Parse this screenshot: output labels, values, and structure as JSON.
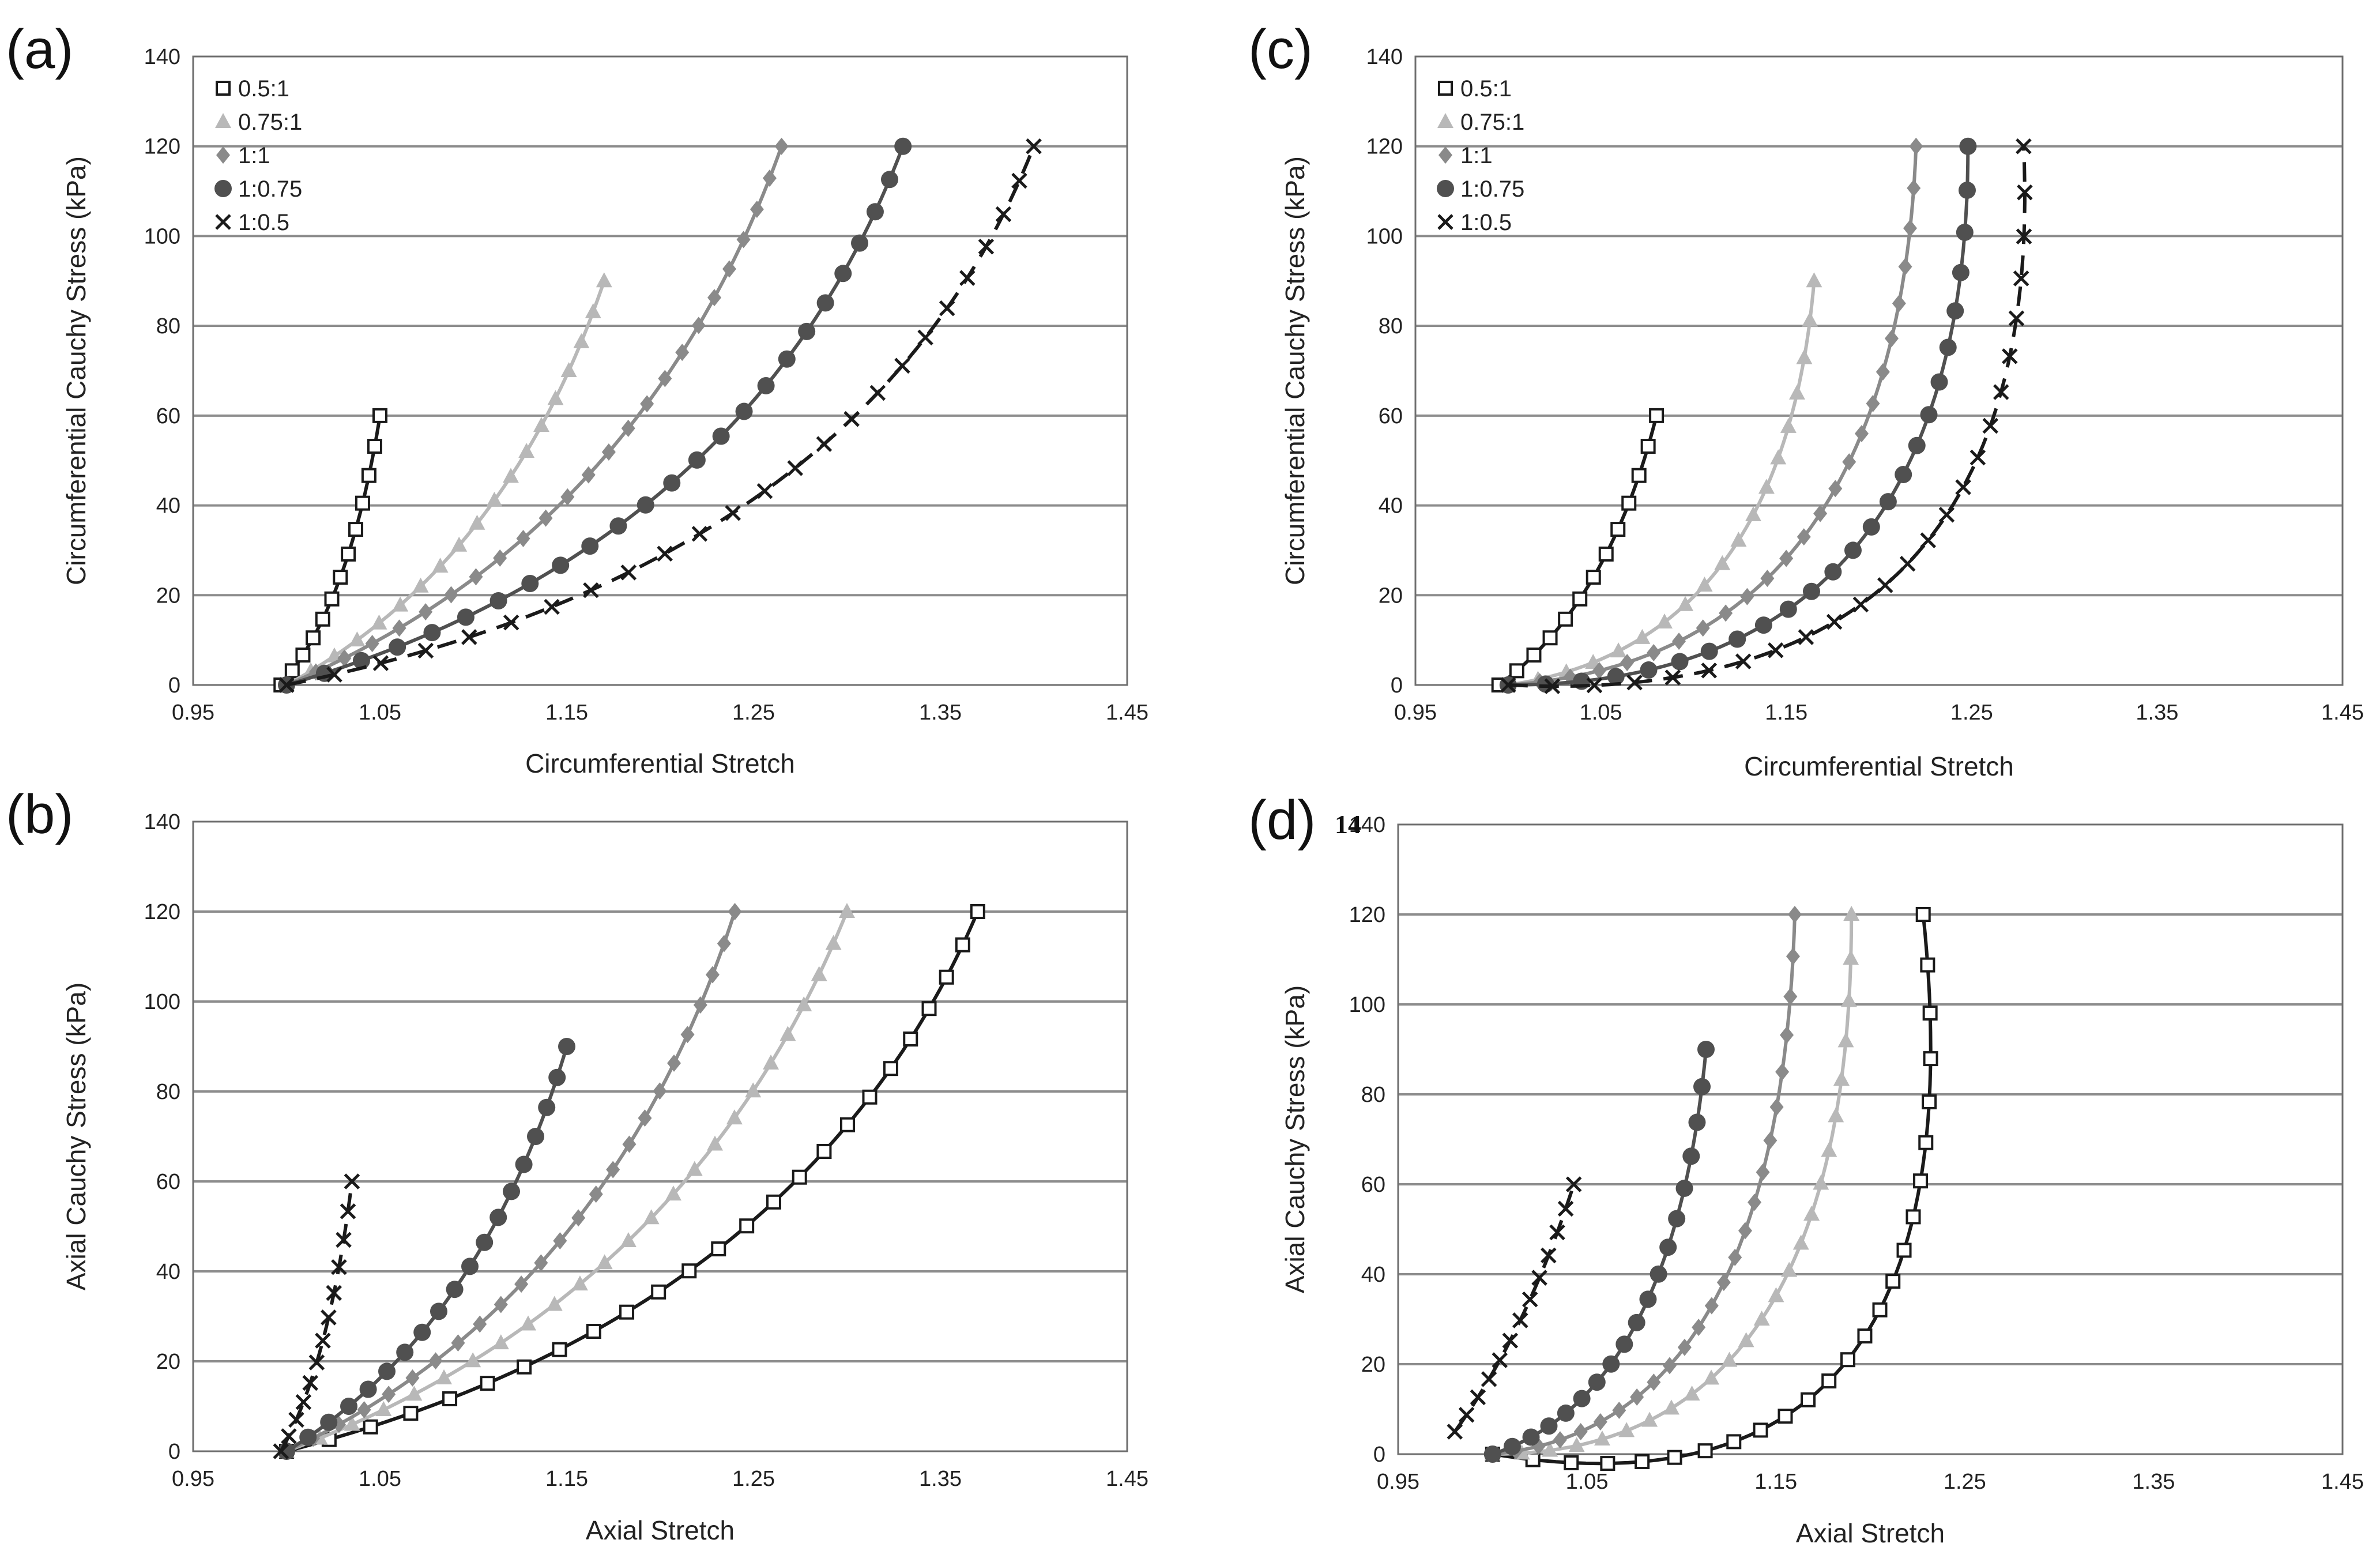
{
  "page_note": "14",
  "chart_data": [
    {
      "panel": "(a)",
      "type": "line",
      "title": "",
      "xlabel": "Circumferential Stretch",
      "ylabel": "Circumferential Cauchy Stress (kPa)",
      "xlim": [
        0.95,
        1.45
      ],
      "ylim": [
        0,
        140
      ],
      "xticks": [
        "0.95",
        "1.05",
        "1.15",
        "1.25",
        "1.35",
        "1.45"
      ],
      "yticks": [
        "0",
        "20",
        "40",
        "60",
        "80",
        "100",
        "120",
        "140"
      ],
      "grid": "horizontal",
      "legend": "top-left",
      "series": [
        {
          "name": "0.5:1",
          "marker": "square",
          "curve": "solid",
          "start": [
            0.997,
            0
          ],
          "end": [
            1.05,
            60
          ],
          "bend": 0.2
        },
        {
          "name": "0.75:1",
          "marker": "triangle",
          "curve": "solid",
          "start": [
            1.0,
            0
          ],
          "end": [
            1.17,
            90
          ],
          "bend": 0.2
        },
        {
          "name": "1:1",
          "marker": "diamond",
          "curve": "solid",
          "start": [
            1.0,
            0
          ],
          "end": [
            1.265,
            120
          ],
          "bend": 0.22
        },
        {
          "name": "1:0.75",
          "marker": "circle",
          "curve": "solid",
          "start": [
            1.0,
            0
          ],
          "end": [
            1.33,
            120
          ],
          "bend": 0.25
        },
        {
          "name": "1:0.5",
          "marker": "x",
          "curve": "dashed",
          "start": [
            1.0,
            0
          ],
          "end": [
            1.4,
            120
          ],
          "bend": 0.28
        }
      ]
    },
    {
      "panel": "(b)",
      "type": "line",
      "title": "",
      "xlabel": "Axial Stretch",
      "ylabel": "Axial Cauchy Stress (kPa)",
      "xlim": [
        0.95,
        1.45
      ],
      "ylim": [
        0,
        140
      ],
      "xticks": [
        "0.95",
        "1.05",
        "1.15",
        "1.25",
        "1.35",
        "1.45"
      ],
      "yticks": [
        "0",
        "20",
        "40",
        "60",
        "80",
        "100",
        "120",
        "140"
      ],
      "grid": "horizontal",
      "legend": "none",
      "series": [
        {
          "name": "0.5:1",
          "marker": "square",
          "curve": "solid",
          "start": [
            1.0,
            0
          ],
          "end": [
            1.37,
            120
          ],
          "bend": 0.25
        },
        {
          "name": "0.75:1",
          "marker": "triangle",
          "curve": "solid",
          "start": [
            1.0,
            0
          ],
          "end": [
            1.3,
            120
          ],
          "bend": 0.22
        },
        {
          "name": "1:1",
          "marker": "diamond",
          "curve": "solid",
          "start": [
            1.0,
            0
          ],
          "end": [
            1.24,
            120
          ],
          "bend": 0.22
        },
        {
          "name": "1:0.75",
          "marker": "circle",
          "curve": "solid",
          "start": [
            1.0,
            0
          ],
          "end": [
            1.15,
            90
          ],
          "bend": 0.2
        },
        {
          "name": "1:0.5",
          "marker": "x",
          "curve": "dashed",
          "start": [
            0.997,
            0
          ],
          "end": [
            1.035,
            60
          ],
          "bend": 0.18
        }
      ]
    },
    {
      "panel": "(c)",
      "type": "line",
      "title": "",
      "xlabel": "Circumferential Stretch",
      "ylabel": "Circumferential Cauchy Stress (kPa)",
      "xlim": [
        0.95,
        1.45
      ],
      "ylim": [
        0,
        140
      ],
      "xticks": [
        "0.95",
        "1.05",
        "1.15",
        "1.25",
        "1.35",
        "1.45"
      ],
      "yticks": [
        "0",
        "20",
        "40",
        "60",
        "80",
        "100",
        "120",
        "140"
      ],
      "grid": "horizontal",
      "legend": "top-left",
      "series": [
        {
          "name": "0.5:1",
          "marker": "square",
          "curve": "solid",
          "start": [
            0.995,
            0
          ],
          "end": [
            1.08,
            60
          ],
          "bend": 0.2
        },
        {
          "name": "0.75:1",
          "marker": "triangle",
          "curve": "solid",
          "start": [
            1.0,
            0
          ],
          "end": [
            1.165,
            90
          ],
          "bend": 0.4
        },
        {
          "name": "1:1",
          "marker": "diamond",
          "curve": "solid",
          "start": [
            1.0,
            0
          ],
          "end": [
            1.22,
            120
          ],
          "bend": 0.45
        },
        {
          "name": "1:0.75",
          "marker": "circle",
          "curve": "solid",
          "start": [
            1.0,
            0
          ],
          "end": [
            1.248,
            120
          ],
          "bend": 0.5
        },
        {
          "name": "1:0.5",
          "marker": "x",
          "curve": "dashed",
          "start": [
            1.0,
            0
          ],
          "end": [
            1.278,
            120
          ],
          "bend": 0.55
        }
      ]
    },
    {
      "panel": "(d)",
      "type": "line",
      "title": "",
      "xlabel": "Axial Stretch",
      "ylabel": "Axial Cauchy Stress (kPa)",
      "xlim": [
        0.95,
        1.45
      ],
      "ylim": [
        0,
        140
      ],
      "xticks": [
        "0.95",
        "1.05",
        "1.15",
        "1.25",
        "1.35",
        "1.45"
      ],
      "yticks": [
        "0",
        "20",
        "40",
        "60",
        "80",
        "100",
        "120",
        "140"
      ],
      "grid": "horizontal",
      "legend": "none",
      "series": [
        {
          "name": "0.5:1",
          "marker": "square",
          "curve": "solid",
          "start": [
            1.0,
            0
          ],
          "end": [
            1.228,
            120
          ],
          "bend": 0.65
        },
        {
          "name": "0.75:1",
          "marker": "triangle",
          "curve": "solid",
          "start": [
            1.0,
            0
          ],
          "end": [
            1.19,
            120
          ],
          "bend": 0.5
        },
        {
          "name": "1:1",
          "marker": "diamond",
          "curve": "solid",
          "start": [
            1.0,
            0
          ],
          "end": [
            1.16,
            120
          ],
          "bend": 0.45
        },
        {
          "name": "1:0.75",
          "marker": "circle",
          "curve": "solid",
          "start": [
            1.0,
            0
          ],
          "end": [
            1.113,
            90
          ],
          "bend": 0.35
        },
        {
          "name": "1:0.5",
          "marker": "x",
          "curve": "dashed",
          "start": [
            0.98,
            5
          ],
          "end": [
            1.043,
            60
          ],
          "bend": 0.1
        }
      ]
    }
  ]
}
